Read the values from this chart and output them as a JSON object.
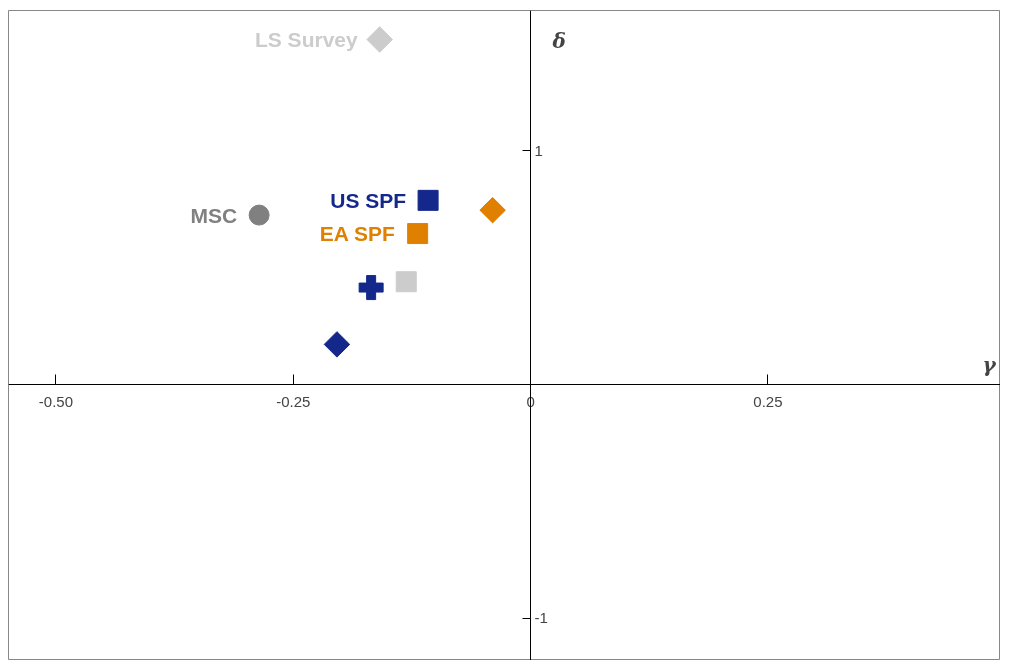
{
  "chart_data": {
    "type": "scatter",
    "xlabel": "γ",
    "ylabel": "δ",
    "xlim": [
      -0.55,
      0.495
    ],
    "ylim": [
      -1.18,
      1.6
    ],
    "xticks": [
      {
        "value": -0.5,
        "label": "-0.50"
      },
      {
        "value": -0.25,
        "label": "-0.25"
      },
      {
        "value": 0,
        "label": "0"
      },
      0.25
    ],
    "yticks": [
      {
        "value": -1,
        "label": "-1"
      },
      1
    ],
    "grid": false,
    "series": [
      {
        "name": "LS Survey",
        "color": "#cccccc",
        "marker": "diamond",
        "x": [
          -0.159
        ],
        "values": [
          1.476
        ]
      },
      {
        "name": "MSC",
        "color": "#808080",
        "marker": "circle",
        "x": [
          -0.286
        ],
        "values": [
          0.725
        ]
      },
      {
        "name": "US SPF",
        "color": "#14288c",
        "marker": "square",
        "x": [
          -0.108
        ],
        "values": [
          0.788
        ]
      },
      {
        "name": "EA SPF",
        "color": "#e08000",
        "marker": "square",
        "x": [
          -0.119
        ],
        "values": [
          0.646
        ]
      },
      {
        "color": "#e08000",
        "marker": "diamond",
        "x": [
          -0.04
        ],
        "values": [
          0.746
        ]
      },
      {
        "color": "#14288c",
        "marker": "cross",
        "x": [
          -0.168
        ],
        "values": [
          0.415
        ]
      },
      {
        "color": "#cccccc",
        "marker": "square",
        "x": [
          -0.131
        ],
        "values": [
          0.44
        ]
      },
      {
        "color": "#14288c",
        "marker": "diamond",
        "x": [
          -0.204
        ],
        "values": [
          0.172
        ]
      }
    ]
  }
}
